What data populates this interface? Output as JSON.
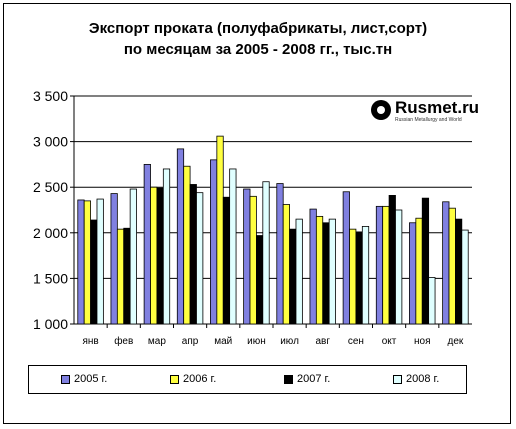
{
  "title_line1": "Экспорт проката (полуфабрикаты, лист,сорт)",
  "title_line2": "по месяцам за 2005 - 2008 гг., тыс.тн",
  "logo": {
    "name": "Rusmet.ru",
    "tagline": "Russian Metallurgy and World"
  },
  "colors": {
    "s2005": "#8080e0",
    "s2006": "#ffff40",
    "s2007": "#000000",
    "s2008": "#e0ffff"
  },
  "chart_data": {
    "type": "bar",
    "title": "Экспорт проката (полуфабрикаты, лист,сорт) по месяцам за 2005 - 2008 гг., тыс.тн",
    "categories": [
      "янв",
      "фев",
      "мар",
      "апр",
      "май",
      "июн",
      "июл",
      "авг",
      "сен",
      "окт",
      "ноя",
      "дек"
    ],
    "series": [
      {
        "name": "2005 г.",
        "values": [
          2360,
          2430,
          2750,
          2920,
          2800,
          2480,
          2540,
          2260,
          2450,
          2290,
          2110,
          2340
        ]
      },
      {
        "name": "2006 г.",
        "values": [
          2350,
          2040,
          2500,
          2730,
          3060,
          2400,
          2310,
          2180,
          2040,
          2290,
          2160,
          2270
        ]
      },
      {
        "name": "2007 г.",
        "values": [
          2140,
          2050,
          2490,
          2530,
          2390,
          1970,
          2040,
          2110,
          2010,
          2410,
          2380,
          2150
        ]
      },
      {
        "name": "2008 г.",
        "values": [
          2370,
          2480,
          2700,
          2440,
          2700,
          2560,
          2150,
          2150,
          2070,
          2250,
          1510,
          2030
        ]
      }
    ],
    "ylim": [
      1000,
      3500
    ],
    "yticks": [
      1000,
      1500,
      2000,
      2500,
      3000,
      3500
    ],
    "ytick_labels": [
      "1 000",
      "1 500",
      "2 000",
      "2 500",
      "3 000",
      "3 500"
    ],
    "grid": true,
    "legend_position": "bottom"
  }
}
